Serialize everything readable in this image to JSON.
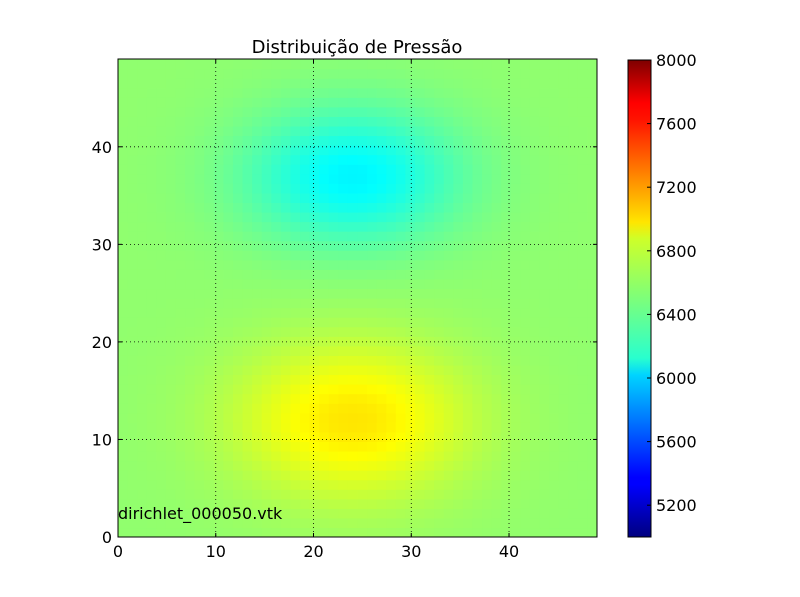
{
  "chart_data": {
    "type": "heatmap",
    "title": "Distribuição de Pressão",
    "xlabel": "",
    "ylabel": "",
    "xlim": [
      0,
      49
    ],
    "ylim": [
      0,
      49
    ],
    "x_ticks": [
      0,
      10,
      20,
      30,
      40
    ],
    "y_ticks": [
      0,
      10,
      20,
      30,
      40
    ],
    "grid": true,
    "colormap": "jet",
    "colorbar": {
      "range": [
        5000,
        8000
      ],
      "ticks": [
        5200,
        5600,
        6000,
        6400,
        6800,
        7200,
        7600,
        8000
      ]
    },
    "field": {
      "base": 6550,
      "features": [
        {
          "kind": "high",
          "center": [
            24,
            12
          ],
          "amplitude": 400,
          "spread": [
            12,
            8
          ]
        },
        {
          "kind": "low",
          "center": [
            24,
            37
          ],
          "amplitude": -450,
          "spread": [
            11,
            7
          ]
        }
      ]
    },
    "annotation": "dirichlet_000050.vtk"
  }
}
